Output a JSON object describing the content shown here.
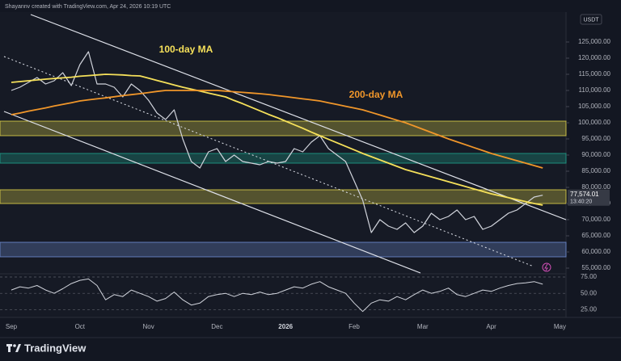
{
  "chart_data": {
    "type": "line",
    "header": "Shayannv created with TradingView.com, Apr 24, 2026 10:19 UTC",
    "quote": "USDT",
    "brand": "TradingView",
    "categories": [
      "Sep",
      null,
      null,
      null,
      null,
      null,
      null,
      null,
      "Oct",
      null,
      null,
      null,
      null,
      null,
      null,
      null,
      "Nov",
      null,
      null,
      null,
      null,
      null,
      null,
      null,
      "Dec",
      null,
      null,
      null,
      null,
      null,
      null,
      null,
      "2026",
      null,
      null,
      null,
      null,
      null,
      null,
      null,
      "Feb",
      null,
      null,
      null,
      null,
      null,
      null,
      null,
      "Mar",
      null,
      null,
      null,
      null,
      null,
      null,
      null,
      "Apr",
      null,
      null,
      null,
      null,
      null,
      null,
      null,
      "May"
    ],
    "series": [
      {
        "color": "#d1d4dc",
        "values": [
          110000,
          111000,
          112500,
          114000,
          112000,
          113000,
          115500,
          111500,
          118000,
          122000,
          112000,
          112000,
          111000,
          108000,
          112000,
          110000,
          107000,
          103000,
          101000,
          104000,
          95000,
          88000,
          86000,
          91000,
          92000,
          88000,
          90000,
          88000,
          87500,
          87000,
          88000,
          87500,
          88000,
          92000,
          91000,
          94000,
          96000,
          92000,
          90000,
          88000,
          82000,
          76000,
          66000,
          70000,
          68000,
          67000,
          69000,
          66000,
          68000,
          72000,
          70000,
          71000,
          73000,
          70000,
          71000,
          67000,
          68000,
          70000,
          72000,
          73000,
          75000,
          77000,
          77574.01,
          null,
          null
        ]
      },
      {
        "name": "100-day MA",
        "color": "#f5e05a",
        "values": [
          112500,
          112750,
          113000,
          113250,
          113500,
          113700,
          113900,
          114100,
          114400,
          114600,
          114800,
          115000,
          114900,
          114800,
          114600,
          114500,
          113800,
          113100,
          112400,
          111700,
          111000,
          110400,
          109800,
          109200,
          108600,
          108000,
          106900,
          105900,
          104800,
          103700,
          102600,
          101600,
          100500,
          99400,
          98300,
          97100,
          96000,
          94900,
          93800,
          92700,
          91600,
          90500,
          89500,
          88500,
          87500,
          86500,
          85500,
          84750,
          84000,
          83250,
          82500,
          81750,
          81000,
          80250,
          79500,
          78750,
          78000,
          77400,
          76800,
          76200,
          75600,
          75000,
          74500,
          null,
          null
        ]
      },
      {
        "name": "200-day MA",
        "color": "#f0962a",
        "values": [
          102500,
          103000,
          103600,
          104100,
          104600,
          105200,
          105700,
          106200,
          106750,
          107100,
          107400,
          107700,
          108050,
          108400,
          108700,
          109000,
          109350,
          109700,
          110000,
          110000,
          110000,
          110000,
          110000,
          110000,
          110000,
          109800,
          109600,
          109400,
          109200,
          109000,
          108750,
          108400,
          108100,
          107750,
          107400,
          107100,
          106750,
          106200,
          105650,
          105100,
          104550,
          104000,
          103200,
          102400,
          101600,
          100800,
          100000,
          99000,
          98000,
          97000,
          96000,
          95000,
          94100,
          93200,
          92300,
          91400,
          90500,
          89750,
          89000,
          88250,
          87500,
          86750,
          86000,
          null,
          null
        ]
      }
    ],
    "zones": [
      {
        "range": [
          96000,
          100500
        ],
        "color": "#e6d84a"
      },
      {
        "range": [
          87500,
          90500
        ],
        "color": "#1fa58f"
      },
      {
        "range": [
          75000,
          79250
        ],
        "color": "#e6d84a"
      },
      {
        "range": [
          58500,
          63000
        ],
        "color": "#6f8fd8"
      }
    ],
    "ylim": [
      53500,
      134250
    ],
    "yticks": [
      {
        "value": 55000,
        "label": "55,000.00"
      },
      {
        "value": 60000,
        "label": "60,000.00"
      },
      {
        "value": 65000,
        "label": "65,000.00"
      },
      {
        "value": 70000,
        "label": "70,000.00"
      },
      {
        "value": 75000,
        "label": "75,000.00"
      },
      {
        "value": 80000,
        "label": "80,000.00"
      },
      {
        "value": 85000,
        "label": "85,000.00"
      },
      {
        "value": 90000,
        "label": "90,000.00"
      },
      {
        "value": 95000,
        "label": "95,000.00"
      },
      {
        "value": 100000,
        "label": "100,000.00"
      },
      {
        "value": 105000,
        "label": "105,000.00"
      },
      {
        "value": 110000,
        "label": "110,000.00"
      },
      {
        "value": 115000,
        "label": "115,000.00"
      },
      {
        "value": 120000,
        "label": "120,000.00"
      },
      {
        "value": 125000,
        "label": "125,000.00"
      }
    ],
    "last_price": {
      "value": 77574.01,
      "label": "77,574.01"
    },
    "countdown": "13:40:20",
    "rsi": {
      "color": "#d1d4dc",
      "values": [
        55,
        60,
        58,
        62,
        55,
        50,
        57,
        65,
        70,
        72,
        62,
        40,
        48,
        45,
        55,
        50,
        45,
        38,
        42,
        52,
        40,
        32,
        35,
        45,
        48,
        50,
        45,
        50,
        48,
        52,
        48,
        50,
        55,
        60,
        58,
        64,
        68,
        60,
        55,
        50,
        35,
        22,
        35,
        40,
        38,
        45,
        40,
        48,
        55,
        50,
        53,
        58,
        48,
        45,
        50,
        55,
        53,
        58,
        62,
        65,
        66,
        68,
        64,
        null,
        null
      ],
      "ylim": [
        13,
        80
      ],
      "yticks": [
        {
          "value": 25,
          "label": "25.00"
        },
        {
          "value": 50,
          "label": "50.00"
        },
        {
          "value": 75,
          "label": "75.00"
        }
      ]
    },
    "grid": false
  }
}
